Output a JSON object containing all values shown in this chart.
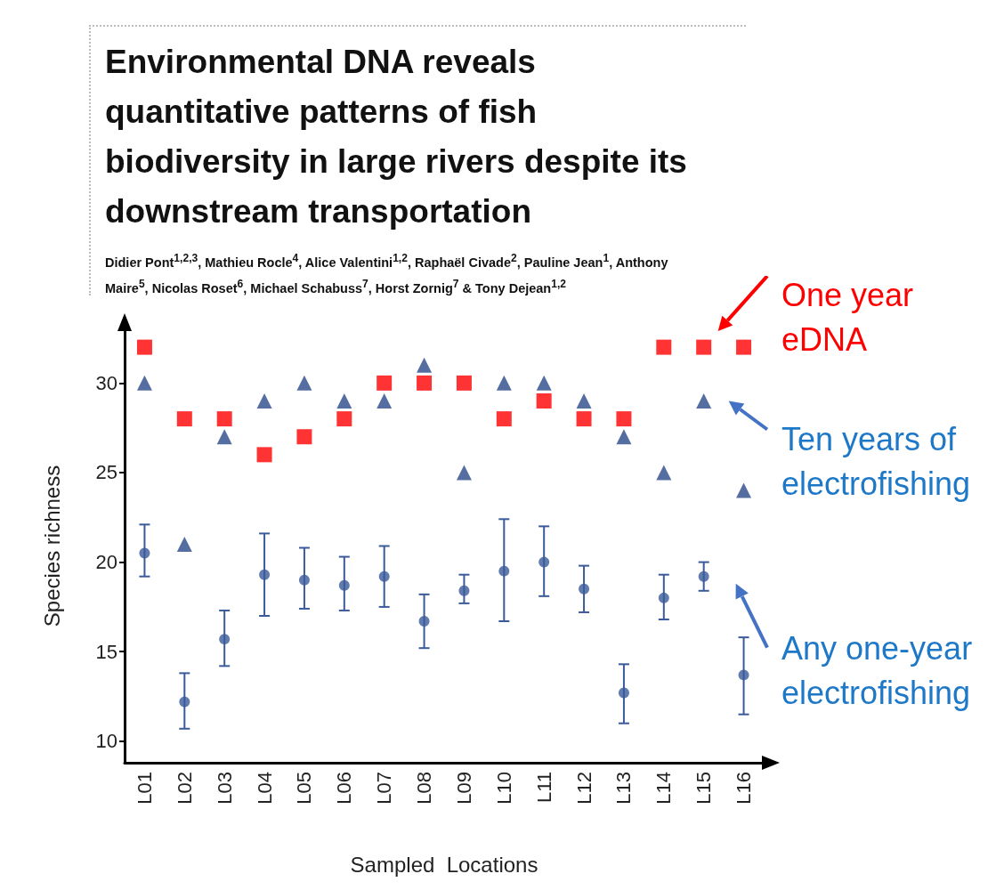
{
  "chart_data": {
    "type": "scatter",
    "title": "Environmental DNA reveals quantitative patterns of fish biodiversity in large rivers despite its downstream transportation",
    "subtitle": "Didier Pont$^{1,2,3}$, Mathieu Rocle$^{4}$, Alice Valentini$^{1,2}$, Raphaël Civade$^{2}$, Pauline Jean$^{1}$, Anthony Maire$^{5}$, Nicolas Roset$^{6}$, Michael Schabuss$^{7}$, Horst Zornig$^{7}$ & Tony Dejean$^{1,2}$",
    "xlabel": "Sampled  Locations",
    "ylabel": "Species richness",
    "categories": [
      "L01",
      "L02",
      "L03",
      "L04",
      "L05",
      "L06",
      "L07",
      "L08",
      "L09",
      "L10",
      "L11",
      "L12",
      "L13",
      "L14",
      "L15",
      "L16"
    ],
    "ylim": [
      8.8,
      33
    ],
    "yticks": [
      10,
      15,
      20,
      25,
      30
    ],
    "grid": false,
    "legend": "right",
    "series": [
      {
        "name": "One year eDNA",
        "color": "#ff0000",
        "marker": "square",
        "values": [
          32,
          28,
          28,
          26,
          27,
          28,
          30,
          30,
          30,
          28,
          29,
          28,
          28,
          32,
          32,
          32
        ]
      },
      {
        "name": "Ten years of electrofishing",
        "color": "#2b4a8b",
        "marker": "triangle",
        "values": [
          30,
          21,
          27,
          29,
          30,
          29,
          29,
          31,
          25,
          30,
          30,
          29,
          27,
          25,
          29,
          24
        ]
      },
      {
        "name": "Any one-year electrofishing",
        "color": "#3a5a9a",
        "marker": "circle",
        "values": [
          20.5,
          12.2,
          15.7,
          19.3,
          19.0,
          18.7,
          19.2,
          16.7,
          18.4,
          19.5,
          20.0,
          18.5,
          12.7,
          18.0,
          19.2,
          13.7
        ],
        "errors": [
          [
            19.2,
            22.1
          ],
          [
            10.7,
            13.8
          ],
          [
            14.2,
            17.3
          ],
          [
            17.0,
            21.6
          ],
          [
            17.4,
            20.8
          ],
          [
            17.3,
            20.3
          ],
          [
            17.5,
            20.9
          ],
          [
            15.2,
            18.2
          ],
          [
            17.7,
            19.3
          ],
          [
            16.7,
            22.4
          ],
          [
            18.1,
            22.0
          ],
          [
            17.2,
            19.8
          ],
          [
            11.0,
            14.3
          ],
          [
            16.8,
            19.3
          ],
          [
            18.4,
            20.0
          ],
          [
            11.5,
            15.8
          ]
        ]
      }
    ]
  }
}
